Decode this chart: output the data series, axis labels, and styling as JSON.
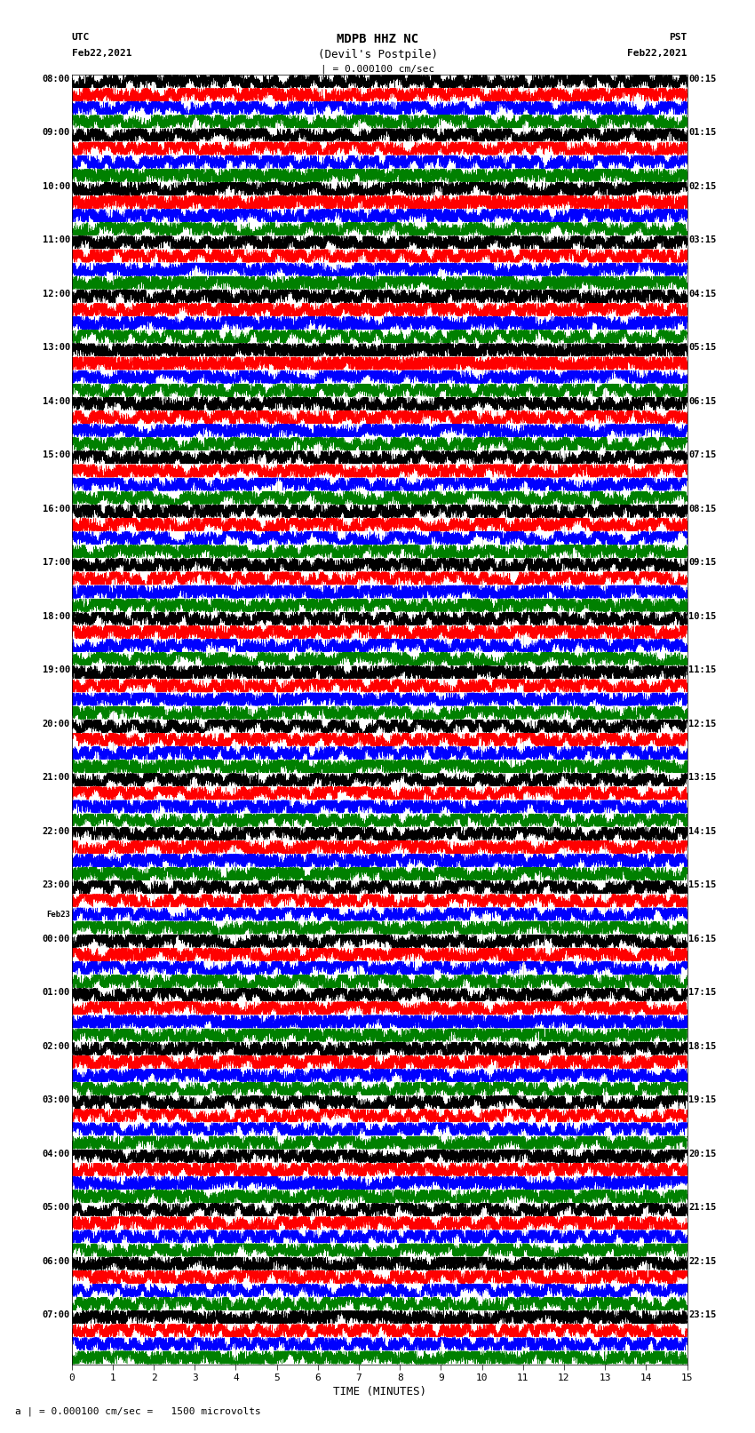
{
  "title_line1": "MDPB HHZ NC",
  "title_line2": "(Devil's Postpile)",
  "scale_label": "| = 0.000100 cm/sec",
  "bottom_label": "a | = 0.000100 cm/sec =   1500 microvolts",
  "xlabel": "TIME (MINUTES)",
  "utc_label": "UTC",
  "utc_date": "Feb22,2021",
  "pst_label": "PST",
  "pst_date": "Feb22,2021",
  "left_times": [
    "08:00",
    "09:00",
    "10:00",
    "11:00",
    "12:00",
    "13:00",
    "14:00",
    "15:00",
    "16:00",
    "17:00",
    "18:00",
    "19:00",
    "20:00",
    "21:00",
    "22:00",
    "23:00",
    "00:00",
    "01:00",
    "02:00",
    "03:00",
    "04:00",
    "05:00",
    "06:00",
    "07:00"
  ],
  "feb23_row": 16,
  "right_times": [
    "00:15",
    "01:15",
    "02:15",
    "03:15",
    "04:15",
    "05:15",
    "06:15",
    "07:15",
    "08:15",
    "09:15",
    "10:15",
    "11:15",
    "12:15",
    "13:15",
    "14:15",
    "15:15",
    "16:15",
    "17:15",
    "18:15",
    "19:15",
    "20:15",
    "21:15",
    "22:15",
    "23:15"
  ],
  "trace_colors": [
    "black",
    "red",
    "blue",
    "green"
  ],
  "n_rows": 24,
  "traces_per_row": 4,
  "x_ticks": [
    0,
    1,
    2,
    3,
    4,
    5,
    6,
    7,
    8,
    9,
    10,
    11,
    12,
    13,
    14,
    15
  ],
  "bg_color": "white",
  "fig_width": 8.5,
  "fig_height": 16.13,
  "dpi": 100
}
